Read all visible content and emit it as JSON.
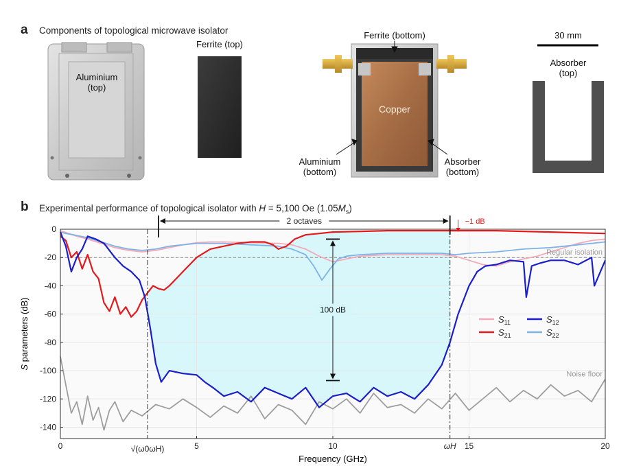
{
  "panel_a": {
    "letter": "a",
    "caption": "Components of topological microwave isolator",
    "labels": {
      "aluminium_top": "Aluminium\n(top)",
      "ferrite_top": "Ferrite (top)",
      "ferrite_bottom": "Ferrite (bottom)",
      "copper": "Copper",
      "aluminium_bottom": "Aluminium\n(bottom)",
      "absorber_bottom": "Absorber\n(bottom)",
      "absorber_top": "Absorber\n(top)",
      "scale_bar": "30 mm"
    }
  },
  "panel_b": {
    "letter": "b",
    "caption_pre": "Experimental performance of topological isolator with ",
    "caption_H": "H",
    "caption_mid": " = 5,100 Oe (1.05",
    "caption_M": "M",
    "caption_sub": "s",
    "caption_post": ")"
  },
  "chart_data": {
    "type": "line",
    "xlabel": "Frequency (GHz)",
    "ylabel_italic": "S",
    "ylabel_rest": " parameters (dB)",
    "xlim": [
      0,
      20
    ],
    "ylim": [
      -148,
      0
    ],
    "x_ticks": [
      0,
      5,
      10,
      15,
      20
    ],
    "x_tick_labels": [
      "0",
      "5",
      "10",
      "15",
      "20"
    ],
    "y_ticks": [
      0,
      -20,
      -40,
      -60,
      -80,
      -100,
      -120,
      -140
    ],
    "y_tick_labels": [
      "0",
      "-20",
      "-40",
      "-60",
      "-80",
      "-100",
      "-120",
      "-140"
    ],
    "special_x_ticks": [
      {
        "x": 3.2,
        "label": "√(ω0ωH)"
      },
      {
        "x": 14.3,
        "label": "ωH"
      }
    ],
    "annotations": {
      "octaves": "2 octaves",
      "octaves_from": 3.6,
      "octaves_to": 14.3,
      "minus1db": "−1 dB",
      "isolation_100db": "100 dB",
      "isolation_top": -7,
      "isolation_bottom": -107,
      "isolation_x": 10,
      "regular_isolation": "Regular isolation",
      "regular_isolation_level": -20,
      "noise_floor": "Noise floor"
    },
    "legend": [
      "S11",
      "S21",
      "S12",
      "S22"
    ],
    "legend_position": "middle-right",
    "series": [
      {
        "name": "S11",
        "color": "#f4a9b8",
        "x": [
          0,
          0.3,
          0.6,
          1,
          1.5,
          2,
          2.5,
          3,
          3.5,
          4,
          4.5,
          5,
          5.5,
          6,
          7,
          8,
          8.5,
          9,
          9.5,
          10,
          10.5,
          11,
          12,
          13,
          14,
          14.5,
          15,
          15.5,
          16,
          16.5,
          17,
          17.5,
          18,
          18.5,
          19,
          19.5,
          20
        ],
        "y": [
          -1,
          -3,
          -5,
          -7,
          -10,
          -13,
          -15,
          -16,
          -15,
          -13,
          -11,
          -9.5,
          -9,
          -9,
          -9.5,
          -10,
          -11,
          -14,
          -19,
          -23,
          -21,
          -19,
          -18,
          -18,
          -18,
          -19,
          -22,
          -25,
          -26,
          -23,
          -21,
          -19,
          -16,
          -13,
          -10,
          -8,
          -7
        ]
      },
      {
        "name": "S22",
        "color": "#7fb3e6",
        "x": [
          0,
          0.2,
          0.5,
          1,
          1.5,
          2,
          2.5,
          3,
          3.5,
          4,
          5,
          6,
          7,
          8,
          8.5,
          9,
          9.3,
          9.6,
          9.9,
          10.2,
          10.5,
          11,
          12,
          13,
          14,
          14.5,
          15,
          16,
          17,
          18,
          19,
          20
        ],
        "y": [
          -2,
          -3,
          -4,
          -6,
          -9,
          -12,
          -14,
          -15,
          -14,
          -12,
          -10,
          -10,
          -11,
          -12,
          -14,
          -18,
          -26,
          -36,
          -28,
          -21,
          -19,
          -18,
          -17,
          -17,
          -17,
          -18,
          -17,
          -16,
          -14,
          -13,
          -11,
          -9
        ]
      },
      {
        "name": "S21",
        "color": "#e31a1c",
        "x": [
          0,
          0.2,
          0.4,
          0.6,
          0.8,
          1,
          1.2,
          1.4,
          1.6,
          1.8,
          2,
          2.2,
          2.4,
          2.6,
          2.8,
          3,
          3.2,
          3.4,
          3.6,
          3.8,
          4,
          4.5,
          5,
          5.5,
          6,
          6.5,
          7,
          7.5,
          7.8,
          8,
          8.3,
          8.6,
          9,
          9.5,
          10,
          11,
          12,
          13,
          14,
          15,
          16,
          17,
          18,
          19,
          20
        ],
        "y": [
          -5,
          -8,
          -20,
          -16,
          -28,
          -18,
          -30,
          -35,
          -52,
          -58,
          -48,
          -60,
          -55,
          -62,
          -58,
          -50,
          -45,
          -40,
          -42,
          -43,
          -40,
          -30,
          -20,
          -14,
          -12,
          -10,
          -9,
          -9,
          -11,
          -14,
          -12,
          -7,
          -4,
          -3,
          -2,
          -1.5,
          -1,
          -1,
          -1,
          -1,
          -1,
          -1.5,
          -2,
          -2.5,
          -3
        ]
      },
      {
        "name": "S12",
        "color": "#1a1fc9",
        "x": [
          0,
          0.2,
          0.4,
          0.6,
          0.8,
          1,
          1.3,
          1.6,
          2,
          2.3,
          2.6,
          2.9,
          3.1,
          3.3,
          3.5,
          3.7,
          4,
          4.5,
          5,
          5.3,
          5.6,
          6,
          6.5,
          7,
          7.5,
          8,
          8.5,
          9,
          9.5,
          10,
          10.5,
          11,
          11.5,
          12,
          12.5,
          13,
          13.5,
          14,
          14.3,
          14.6,
          15,
          15.3,
          15.6,
          16,
          16.5,
          17,
          17.1,
          17.3,
          17.6,
          18,
          18.5,
          19,
          19.5,
          19.6,
          20
        ],
        "y": [
          -2,
          -12,
          -30,
          -20,
          -14,
          -5,
          -7,
          -10,
          -20,
          -26,
          -30,
          -36,
          -48,
          -70,
          -95,
          -108,
          -100,
          -102,
          -103,
          -108,
          -112,
          -118,
          -115,
          -122,
          -112,
          -116,
          -120,
          -112,
          -126,
          -118,
          -116,
          -122,
          -112,
          -118,
          -115,
          -120,
          -110,
          -96,
          -80,
          -60,
          -40,
          -30,
          -26,
          -25,
          -22,
          -23,
          -48,
          -26,
          -24,
          -22,
          -22,
          -25,
          -20,
          -40,
          -22
        ]
      },
      {
        "name": "Noise floor",
        "color": "#9e9e9e",
        "x": [
          0,
          0.2,
          0.4,
          0.6,
          0.8,
          1,
          1.2,
          1.4,
          1.6,
          1.8,
          2,
          2.3,
          2.6,
          3,
          3.5,
          4,
          4.5,
          5,
          5.5,
          6,
          6.5,
          7,
          7.5,
          8,
          8.5,
          9,
          9.5,
          10,
          10.5,
          11,
          11.5,
          12,
          12.5,
          13,
          13.5,
          14,
          14.5,
          15,
          15.5,
          16,
          16.5,
          17,
          17.5,
          18,
          18.5,
          19,
          19.5,
          20
        ],
        "y": [
          -90,
          -110,
          -130,
          -122,
          -138,
          -118,
          -135,
          -126,
          -142,
          -128,
          -122,
          -136,
          -128,
          -132,
          -124,
          -127,
          -120,
          -126,
          -133,
          -125,
          -130,
          -118,
          -134,
          -124,
          -128,
          -138,
          -122,
          -127,
          -120,
          -130,
          -116,
          -126,
          -124,
          -130,
          -120,
          -127,
          -116,
          -128,
          -120,
          -112,
          -122,
          -114,
          -120,
          -110,
          -118,
          -114,
          -122,
          -106
        ]
      }
    ]
  }
}
